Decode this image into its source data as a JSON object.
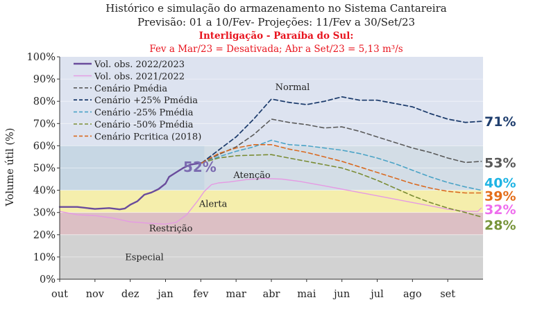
{
  "chart_data": {
    "type": "line",
    "title": "Histórico e simulação do armazenamento no Sistema Cantareira",
    "subtitle": "Previsão: 01 a 10/Fev- Projeções: 11/Fev a 30/Set/23",
    "note_title": "Interligação - Paraíba do Sul:",
    "note_text": "Fev a Mar/23 = Desativada; Abr a Set/23 = 5,13 m³/s",
    "ylabel": "Volume útil (%)",
    "ylim": [
      0,
      100
    ],
    "yticks": [
      "0%",
      "10%",
      "20%",
      "30%",
      "40%",
      "50%",
      "60%",
      "70%",
      "80%",
      "90%",
      "100%"
    ],
    "xlim": [
      0,
      12
    ],
    "categories": [
      "out",
      "nov",
      "dez",
      "jan",
      "fev",
      "mar",
      "abr",
      "mai",
      "jun",
      "jul",
      "ago",
      "set"
    ],
    "zones": [
      {
        "name": "Normal",
        "from": 60,
        "to": 100,
        "color": "#dde3f0"
      },
      {
        "name": "Atenção",
        "from": 40,
        "to": 60,
        "color": "#d3dde6"
      },
      {
        "name": "Alerta",
        "from": 30,
        "to": 40,
        "color": "#f5eeac"
      },
      {
        "name": "Restrição",
        "from": 20,
        "to": 30,
        "color": "#dcbfc4"
      },
      {
        "name": "Especial",
        "from": 0,
        "to": 20,
        "color": "#d2d2d2"
      }
    ],
    "zone_overlay": {
      "x_to": 4.1,
      "from": 40,
      "to": 60,
      "color": "#c7d7e4"
    },
    "series": [
      {
        "name": "Vol. obs. 2022/2023",
        "color": "#6a4c9c",
        "dash": "none",
        "width": 2.4,
        "x": [
          0,
          0.5,
          1.0,
          1.4,
          1.7,
          1.85,
          2.0,
          2.2,
          2.4,
          2.6,
          2.8,
          3.0,
          3.1,
          3.3,
          3.5,
          3.7,
          3.9,
          4.03
        ],
        "y": [
          32.5,
          32.5,
          31.6,
          32.0,
          31.4,
          31.8,
          33.5,
          35.0,
          38.0,
          39.0,
          40.5,
          43.0,
          46.0,
          48.0,
          50.0,
          51.5,
          52.0,
          52.3
        ]
      },
      {
        "name": "Vol. obs. 2021/2022",
        "color": "#e59ae3",
        "dash": "none",
        "width": 1.4,
        "x": [
          0,
          0.5,
          1.0,
          1.5,
          2.0,
          2.5,
          3.0,
          3.3,
          3.6,
          3.9,
          4.1,
          4.3,
          4.5,
          4.8,
          5.3,
          5.8,
          6.3,
          6.8,
          7.5,
          8.0,
          8.5,
          9.0,
          9.5,
          10.0,
          10.5,
          11.0,
          11.5,
          11.85,
          11.95
        ],
        "y": [
          30.5,
          29.0,
          28.6,
          27.5,
          25.8,
          25.2,
          24.8,
          25.5,
          29.0,
          35.0,
          39.5,
          42.5,
          43.3,
          43.7,
          44.8,
          45.3,
          45.0,
          44.0,
          42.0,
          40.5,
          39.0,
          37.5,
          36.0,
          34.5,
          33.0,
          31.5,
          30.5,
          30.5,
          32.0
        ]
      },
      {
        "name": "Cenário Pmédia",
        "color": "#595959",
        "dash": "6 4",
        "width": 1.6,
        "x": [
          4.03,
          4.5,
          5.0,
          5.5,
          6.0,
          6.5,
          7.0,
          7.5,
          8.0,
          8.5,
          9.0,
          9.5,
          10.0,
          10.5,
          11.0,
          11.5,
          11.95
        ],
        "y": [
          52.3,
          56.0,
          59.5,
          65.0,
          72.0,
          70.5,
          69.5,
          68.0,
          68.5,
          66.5,
          64.0,
          61.5,
          59.0,
          57.0,
          54.5,
          52.5,
          53.0
        ]
      },
      {
        "name": "Cenário +25% Pmédia",
        "color": "#1f3e6e",
        "dash": "6 4",
        "width": 1.8,
        "x": [
          4.03,
          4.5,
          5.0,
          5.5,
          6.0,
          6.5,
          7.0,
          7.5,
          8.0,
          8.5,
          9.0,
          9.5,
          10.0,
          10.5,
          11.0,
          11.5,
          11.95
        ],
        "y": [
          52.3,
          58.0,
          64.0,
          72.0,
          81.0,
          79.5,
          78.5,
          80.0,
          82.0,
          80.5,
          80.5,
          79.0,
          77.5,
          74.5,
          72.0,
          70.5,
          71.0
        ]
      },
      {
        "name": "Cenário -25% Pmédia",
        "color": "#4aa3c6",
        "dash": "6 4",
        "width": 1.6,
        "x": [
          4.03,
          4.5,
          5.0,
          5.5,
          6.0,
          6.5,
          7.0,
          7.5,
          8.0,
          8.5,
          9.0,
          9.5,
          10.0,
          10.5,
          11.0,
          11.5,
          11.95
        ],
        "y": [
          52.3,
          55.0,
          57.5,
          59.5,
          62.5,
          60.5,
          60.0,
          59.0,
          58.0,
          56.5,
          54.5,
          52.0,
          49.0,
          46.0,
          43.5,
          41.5,
          40.0
        ]
      },
      {
        "name": "Cenário -50% Pmédia",
        "color": "#7a8c34",
        "dash": "6 4",
        "width": 1.6,
        "x": [
          4.03,
          4.5,
          5.0,
          5.5,
          6.0,
          6.5,
          7.0,
          7.5,
          8.0,
          8.5,
          9.0,
          9.5,
          10.0,
          10.5,
          11.0,
          11.5,
          11.95
        ],
        "y": [
          52.3,
          54.5,
          55.5,
          55.8,
          56.0,
          54.5,
          53.0,
          51.5,
          50.0,
          47.5,
          44.5,
          41.0,
          37.5,
          34.5,
          32.0,
          30.0,
          28.0
        ]
      },
      {
        "name": "Cenário Pcritica (2018)",
        "color": "#d9691f",
        "dash": "6 4",
        "width": 1.6,
        "x": [
          4.03,
          4.5,
          5.0,
          5.5,
          6.0,
          6.5,
          7.0,
          7.5,
          8.0,
          8.5,
          9.0,
          9.5,
          10.0,
          10.5,
          11.0,
          11.5,
          11.95
        ],
        "y": [
          52.3,
          56.5,
          59.0,
          60.5,
          60.5,
          58.5,
          57.0,
          55.0,
          53.0,
          50.5,
          48.0,
          45.5,
          43.0,
          41.0,
          39.5,
          38.8,
          38.8
        ]
      }
    ],
    "annotations": [
      {
        "text": "52%",
        "x": 4.05,
        "y": 50.5,
        "color": "#7b6bb0"
      },
      {
        "text": "71%",
        "x": 12.0,
        "y": 71,
        "color": "#1f3e6e"
      },
      {
        "text": "53%",
        "x": 12.0,
        "y": 52.5,
        "color": "#595959"
      },
      {
        "text": "40%",
        "x": 12.0,
        "y": 43.5,
        "color": "#1fb4e4"
      },
      {
        "text": "39%",
        "x": 12.0,
        "y": 37.5,
        "color": "#e46e1a"
      },
      {
        "text": "32%",
        "x": 12.0,
        "y": 31.5,
        "color": "#ee6ded"
      },
      {
        "text": "28%",
        "x": 12.0,
        "y": 24.5,
        "color": "#77943a"
      }
    ],
    "legend_position": "top-left"
  }
}
